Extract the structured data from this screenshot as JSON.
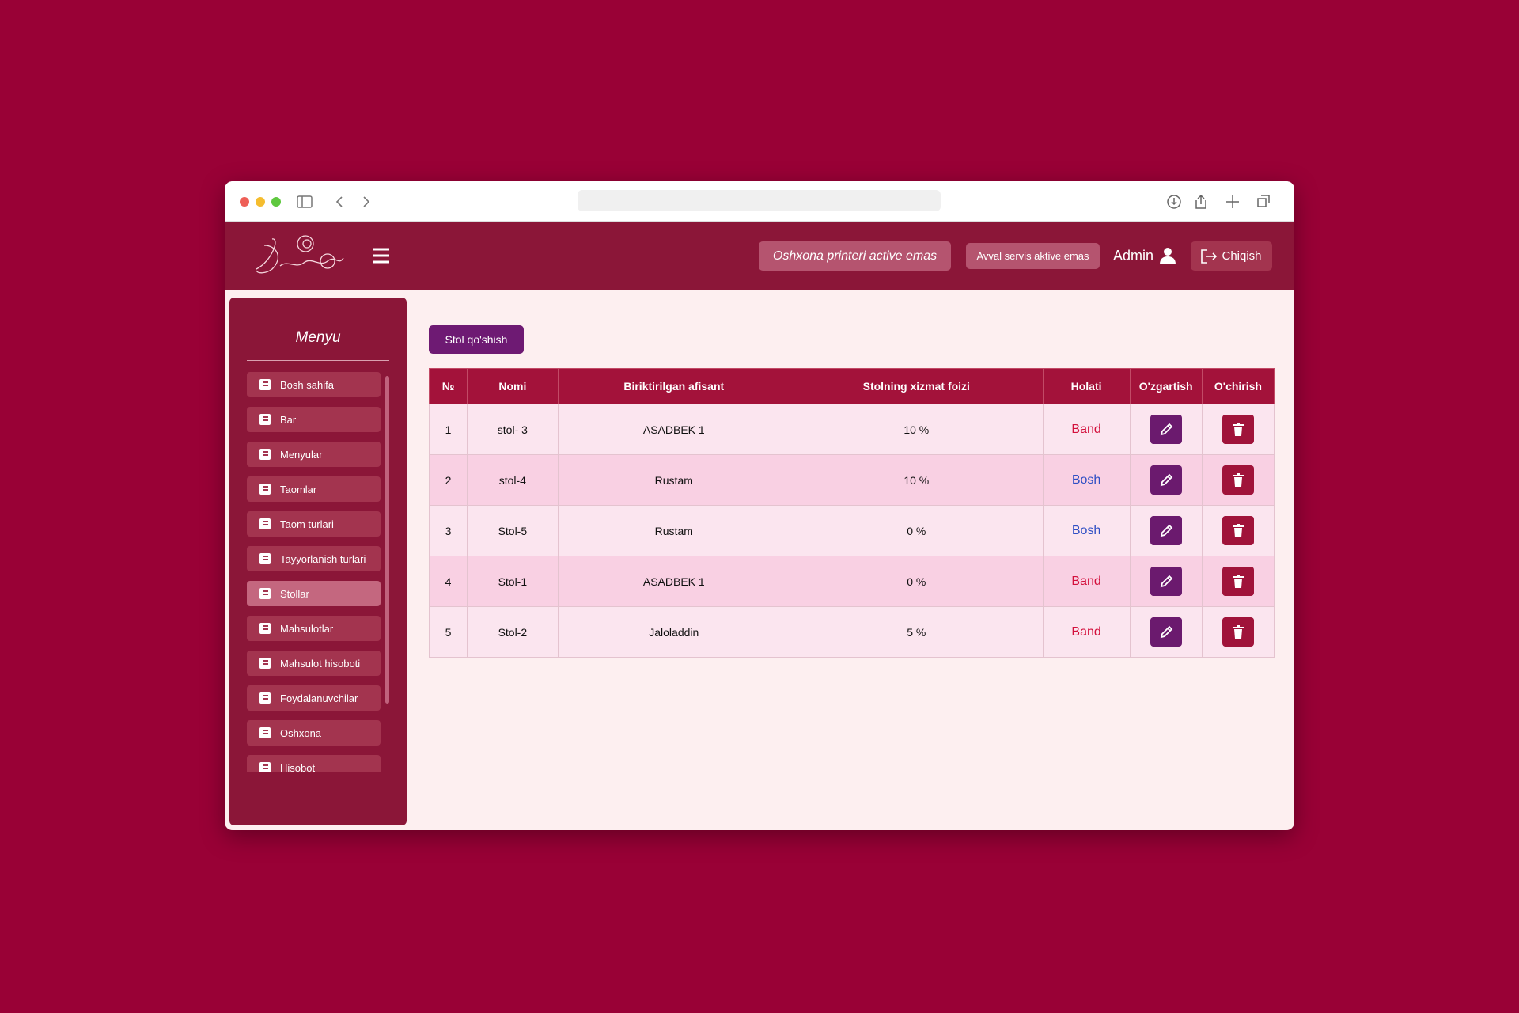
{
  "header": {
    "printer_status": "Oshxona printeri active emas",
    "service_status": "Avval servis aktive emas",
    "user": "Admin",
    "logout": "Chiqish"
  },
  "menu": {
    "title": "Menyu",
    "active": 6,
    "items": [
      "Bosh sahifa",
      "Bar",
      "Menyular",
      "Taomlar",
      "Taom turlari",
      "Tayyorlanish turlari",
      "Stollar",
      "Mahsulotlar",
      "Mahsulot hisoboti",
      "Foydalanuvchilar",
      "Oshxona",
      "Hisobot"
    ]
  },
  "add_button": "Stol qo'shish",
  "table": {
    "columns": [
      "№",
      "Nomi",
      "Biriktirilgan afisant",
      "Stolning xizmat foizi",
      "Holati",
      "O'zgartish",
      "O'chirish"
    ],
    "rows": [
      [
        "1",
        "stol- 3",
        "ASADBEK 1",
        "10 %",
        "Band"
      ],
      [
        "2",
        "stol-4",
        "Rustam",
        "10 %",
        "Bosh"
      ],
      [
        "3",
        "Stol-5",
        "Rustam",
        "0 %",
        "Bosh"
      ],
      [
        "4",
        "Stol-1",
        "ASADBEK 1",
        "0 %",
        "Band"
      ],
      [
        "5",
        "Stol-2",
        "Jaloladdin",
        "5 %",
        "Band"
      ]
    ],
    "status_colors": {
      "Band": "#d3103c",
      "Bosh": "#2f4fc4"
    }
  }
}
